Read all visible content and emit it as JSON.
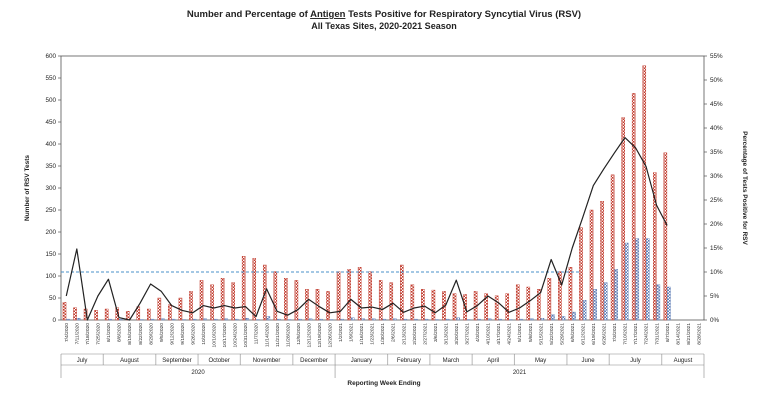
{
  "chart_data": {
    "type": "bar",
    "title_pre": "Number and Percentage of ",
    "title_underlined": "Antigen",
    "title_post": " Tests Positive for Respiratory Syncytial Virus (RSV)",
    "subtitle": "All Texas Sites, 2020-2021 Season",
    "ylabel": "Number of RSV Tests",
    "y2label": "Percentage of Tests Positive for RSV",
    "xlabel": "Reporting Week Ending",
    "ylim": [
      0,
      600
    ],
    "y2lim": [
      0,
      55
    ],
    "yticks": [
      "0",
      "50",
      "100",
      "150",
      "200",
      "250",
      "300",
      "350",
      "400",
      "450",
      "500",
      "550",
      "600"
    ],
    "y2ticks": [
      "0%",
      "5%",
      "10%",
      "15%",
      "20%",
      "25%",
      "30%",
      "35%",
      "40%",
      "45%",
      "50%",
      "55%"
    ],
    "threshold_percent": 10,
    "categories": [
      "7/4/2020",
      "7/11/2020",
      "7/18/2020",
      "7/25/2020",
      "8/1/2020",
      "8/8/2020",
      "8/15/2020",
      "8/22/2020",
      "8/29/2020",
      "9/5/2020",
      "9/12/2020",
      "9/19/2020",
      "9/26/2020",
      "10/3/2020",
      "10/10/2020",
      "10/17/2020",
      "10/24/2020",
      "10/31/2020",
      "11/7/2020",
      "11/14/2020",
      "11/21/2020",
      "11/28/2020",
      "12/5/2020",
      "12/12/2020",
      "12/19/2020",
      "12/26/2020",
      "1/2/2021",
      "1/9/2021",
      "1/16/2021",
      "1/23/2021",
      "1/30/2021",
      "2/6/2021",
      "2/13/2021",
      "2/20/2021",
      "2/27/2021",
      "3/6/2021",
      "3/13/2021",
      "3/20/2021",
      "3/27/2021",
      "4/3/2021",
      "4/10/2021",
      "4/17/2021",
      "4/24/2021",
      "5/1/2021",
      "5/8/2021",
      "5/15/2021",
      "5/22/2021",
      "5/29/2021",
      "6/5/2021",
      "6/12/2021",
      "6/19/2021",
      "6/26/2021",
      "7/3/2021",
      "7/10/2021",
      "7/17/2021",
      "7/24/2021",
      "7/31/2021",
      "8/7/2021",
      "8/14/2021",
      "8/21/2021",
      "8/28/2021"
    ],
    "series": [
      {
        "name": "",
        "kind": "total-tests-bar",
        "color": "#c0392b",
        "values": [
          40,
          28,
          25,
          22,
          25,
          28,
          20,
          30,
          25,
          50,
          35,
          50,
          65,
          90,
          80,
          95,
          85,
          145,
          140,
          125,
          110,
          95,
          90,
          70,
          70,
          65,
          110,
          115,
          120,
          110,
          90,
          85,
          125,
          80,
          70,
          68,
          65,
          60,
          58,
          65,
          60,
          55,
          60,
          80,
          75,
          70,
          95,
          110,
          120,
          210,
          250,
          270,
          330,
          460,
          515,
          578,
          335,
          380,
          0,
          0,
          0
        ]
      },
      {
        "name": "",
        "kind": "positive-tests-bar",
        "color": "#5b7bb5",
        "values": [
          2,
          4,
          0,
          0,
          2,
          2,
          0,
          1,
          2,
          3,
          2,
          1,
          2,
          3,
          2,
          3,
          2,
          4,
          1,
          8,
          2,
          1,
          2,
          3,
          2,
          1,
          2,
          5,
          3,
          3,
          2,
          3,
          2,
          2,
          2,
          1,
          2,
          5,
          1,
          2,
          3,
          2,
          1,
          2,
          3,
          4,
          12,
          8,
          18,
          45,
          70,
          85,
          115,
          175,
          185,
          185,
          80,
          75,
          0,
          0,
          0
        ]
      },
      {
        "name": "",
        "kind": "percent-positive-line",
        "color": "#222222",
        "values": [
          5,
          14.8,
          0,
          5,
          8.5,
          0.5,
          0,
          3.5,
          7.5,
          6,
          3,
          2,
          1.5,
          3,
          2.5,
          3,
          2.5,
          2.8,
          0.7,
          6.5,
          1.8,
          1,
          2.2,
          4.3,
          2.8,
          1.5,
          1.8,
          4.3,
          2.5,
          2.7,
          2.2,
          3.5,
          1.6,
          2.5,
          2.9,
          1.5,
          3.1,
          8.3,
          1.7,
          3,
          5,
          3.6,
          1.6,
          2.5,
          4,
          5.7,
          12.6,
          7.3,
          15,
          21.4,
          28,
          31.5,
          34.8,
          38,
          35.9,
          32,
          23.9,
          19.7,
          null,
          null,
          null
        ]
      }
    ],
    "month_labels": [
      "July",
      "August",
      "September",
      "October",
      "November",
      "December",
      "January",
      "February",
      "March",
      "April",
      "May",
      "June",
      "July",
      "August"
    ],
    "month_week_counts": [
      4,
      5,
      4,
      4,
      5,
      4,
      5,
      4,
      4,
      4,
      5,
      4,
      5,
      4
    ],
    "year_labels": [
      "2020",
      "2021"
    ],
    "year_week_counts": [
      26,
      35
    ]
  }
}
